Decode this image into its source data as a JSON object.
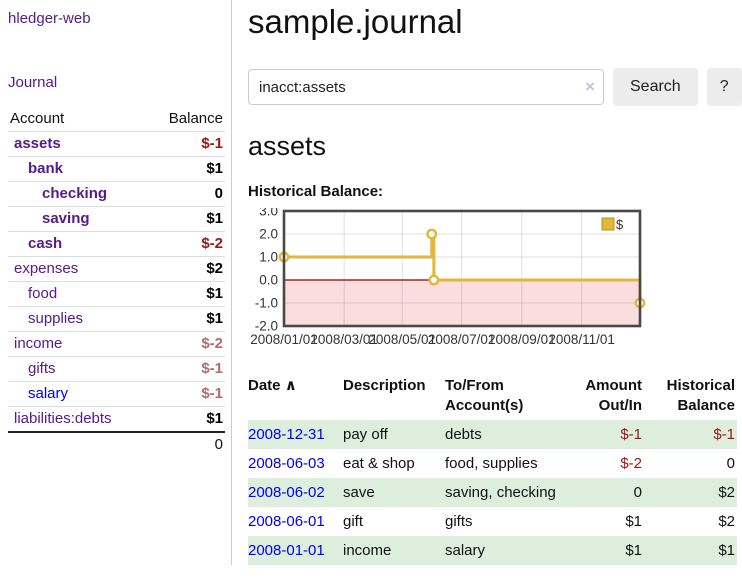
{
  "app": {
    "title": "hledger-web",
    "journal_link": "Journal"
  },
  "sidebar": {
    "header": {
      "account": "Account",
      "balance": "Balance"
    },
    "accounts": [
      {
        "name": "assets",
        "indent": 1,
        "balance": "$-1",
        "bold": true,
        "neg": "strong"
      },
      {
        "name": "bank",
        "indent": 2,
        "balance": "$1",
        "bold": true,
        "neg": "none"
      },
      {
        "name": "checking",
        "indent": 3,
        "balance": "0",
        "bold": true,
        "neg": "none"
      },
      {
        "name": "saving",
        "indent": 3,
        "balance": "$1",
        "bold": true,
        "neg": "none"
      },
      {
        "name": "cash",
        "indent": 2,
        "balance": "$-2",
        "bold": true,
        "neg": "strong"
      },
      {
        "name": "expenses",
        "indent": 1,
        "balance": "$2",
        "bold": false,
        "neg": "none"
      },
      {
        "name": "food",
        "indent": 2,
        "balance": "$1",
        "bold": false,
        "neg": "none"
      },
      {
        "name": "supplies",
        "indent": 2,
        "balance": "$1",
        "bold": false,
        "neg": "none"
      },
      {
        "name": "income",
        "indent": 1,
        "balance": "$-2",
        "bold": false,
        "neg": "soft"
      },
      {
        "name": "gifts",
        "indent": 2,
        "balance": "$-1",
        "bold": false,
        "neg": "soft"
      },
      {
        "name": "salary",
        "indent": 2,
        "balance": "$-1",
        "bold": false,
        "neg": "soft",
        "link": "blue"
      },
      {
        "name": "liabilities:debts",
        "indent": 1,
        "balance": "$1",
        "bold": false,
        "neg": "none"
      }
    ],
    "total": "0"
  },
  "header": {
    "title": "sample.journal"
  },
  "search": {
    "value": "inacct:assets",
    "clear_icon": "×",
    "button_label": "Search",
    "help_label": "?"
  },
  "account_page": {
    "heading": "assets",
    "chart_title": "Historical Balance:"
  },
  "chart_data": {
    "type": "line",
    "step": true,
    "title": "Historical Balance",
    "legend": {
      "label": "$",
      "position": "top-right"
    },
    "ylim": [
      -2,
      3
    ],
    "y_ticks": [
      {
        "label": "3.0",
        "value": 3
      },
      {
        "label": "2.0",
        "value": 2
      },
      {
        "label": "1.0",
        "value": 1
      },
      {
        "label": "0.0",
        "value": 0
      },
      {
        "label": "-1.0",
        "value": -1
      },
      {
        "label": "-2.0",
        "value": -2
      }
    ],
    "x_ticks": [
      {
        "label": "2008/01/01",
        "f": 0.0
      },
      {
        "label": "2008/03/01",
        "f": 0.169
      },
      {
        "label": "2008/05/01",
        "f": 0.332
      },
      {
        "label": "2008/07/01",
        "f": 0.499
      },
      {
        "label": "2008/09/01",
        "f": 0.668
      },
      {
        "label": "2008/11/01",
        "f": 0.836
      }
    ],
    "series": [
      {
        "name": "$",
        "color": "#e2b73a",
        "marker_fill": "#ffffff",
        "points": [
          {
            "x": 0.0,
            "y": 1,
            "date": "2008-01-01"
          },
          {
            "x": 0.415,
            "y": 2,
            "date": "2008-06-01"
          },
          {
            "x": 0.421,
            "y": 0,
            "date": "2008-06-03"
          },
          {
            "x": 1.0,
            "y": -1,
            "date": "2008-12-31"
          }
        ]
      }
    ],
    "colors": {
      "negative_region": "#fadddd",
      "zero_line": "#8b0000",
      "grid": "rgba(110,110,110,0.22)",
      "border": "#484848",
      "tick_text": "#333333"
    },
    "grid": true
  },
  "register": {
    "headers": {
      "date": "Date",
      "sort_indicator": "∧",
      "description": "Description",
      "accounts": "To/From Account(s)",
      "amount": "Amount Out/In",
      "balance": "Historical Balance"
    },
    "rows": [
      {
        "date": "2008-12-31",
        "description": "pay off",
        "accounts": "debts",
        "amount": "$-1",
        "amount_neg": true,
        "balance": "$-1",
        "balance_neg": true
      },
      {
        "date": "2008-06-03",
        "description": "eat & shop",
        "accounts": "food, supplies",
        "amount": "$-2",
        "amount_neg": true,
        "balance": "0",
        "balance_neg": false
      },
      {
        "date": "2008-06-02",
        "description": "save",
        "accounts": "saving, checking",
        "amount": "0",
        "amount_neg": false,
        "balance": "$2",
        "balance_neg": false
      },
      {
        "date": "2008-06-01",
        "description": "gift",
        "accounts": "gifts",
        "amount": "$1",
        "amount_neg": false,
        "balance": "$2",
        "balance_neg": false
      },
      {
        "date": "2008-01-01",
        "description": "income",
        "accounts": "salary",
        "amount": "$1",
        "amount_neg": false,
        "balance": "$1",
        "balance_neg": false
      }
    ]
  }
}
